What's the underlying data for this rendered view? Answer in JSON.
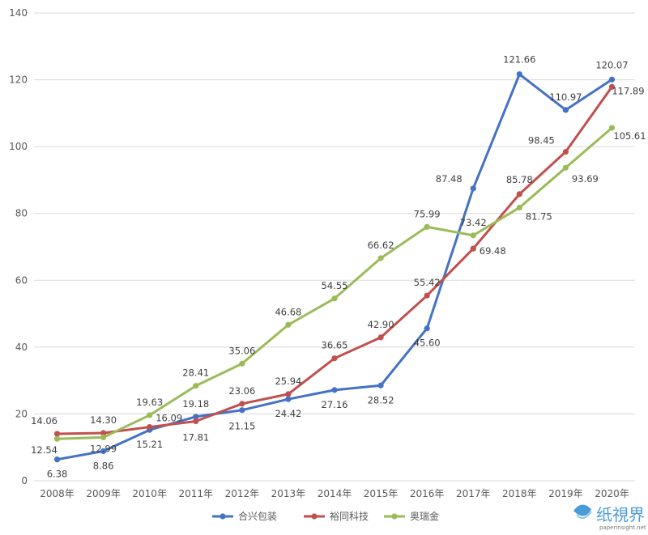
{
  "chart_data": {
    "type": "line",
    "title": "",
    "xlabel": "",
    "ylabel": "",
    "ylim": [
      0,
      140
    ],
    "yticks": [
      0,
      20,
      40,
      60,
      80,
      100,
      120,
      140
    ],
    "grid": true,
    "legend_position": "bottom",
    "categories": [
      "2008年",
      "2009年",
      "2010年",
      "2011年",
      "2012年",
      "2013年",
      "2014年",
      "2015年",
      "2016年",
      "2017年",
      "2018年",
      "2019年",
      "2020年"
    ],
    "series": [
      {
        "name": "合兴包装",
        "color": "#4472c4",
        "values": [
          6.38,
          8.86,
          15.21,
          19.18,
          21.15,
          24.42,
          27.16,
          28.52,
          45.6,
          87.48,
          121.66,
          110.97,
          120.07
        ],
        "labels": [
          "6.38",
          "8.86",
          "15.21",
          "19.18",
          "21.15",
          "24.42",
          "27.16",
          "28.52",
          "45.60",
          "87.48",
          "121.66",
          "110.97",
          "120.07"
        ]
      },
      {
        "name": "裕同科技",
        "color": "#c0504d",
        "values": [
          14.06,
          14.3,
          16.09,
          17.81,
          23.06,
          25.94,
          36.65,
          42.9,
          55.42,
          69.48,
          85.78,
          98.45,
          117.89
        ],
        "labels": [
          "14.06",
          "14.30",
          "16.09",
          "17.81",
          "23.06",
          "25.94",
          "36.65",
          "42.90",
          "55.42",
          "69.48",
          "85.78",
          "98.45",
          "117.89"
        ]
      },
      {
        "name": "奥瑞金",
        "color": "#9bbb59",
        "values": [
          12.54,
          12.99,
          19.63,
          28.41,
          35.06,
          46.68,
          54.55,
          66.62,
          75.99,
          73.42,
          81.75,
          93.69,
          105.61
        ],
        "labels": [
          "12.54",
          "12.99",
          "19.63",
          "28.41",
          "35.06",
          "46.68",
          "54.55",
          "66.62",
          "75.99",
          "73.42",
          "81.75",
          "93.69",
          "105.61"
        ]
      }
    ]
  },
  "watermark": {
    "text": "纸視界",
    "url": "paperinsight.net"
  }
}
